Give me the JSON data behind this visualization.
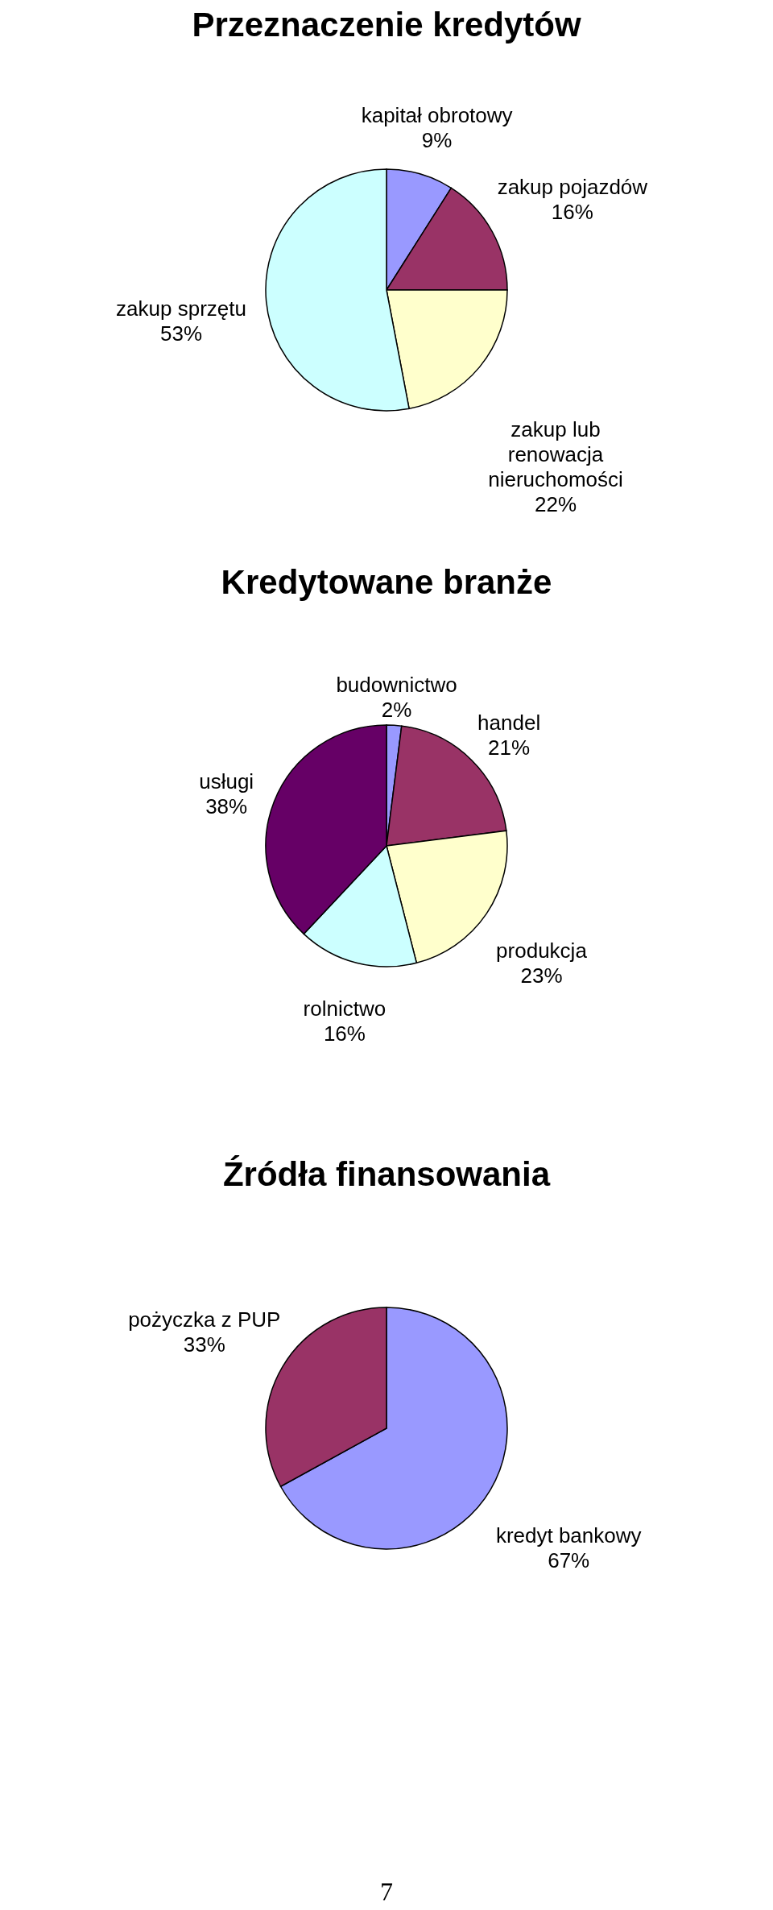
{
  "chart_data": [
    {
      "type": "pie",
      "title": "Przeznaczenie kredytów",
      "categories": [
        "kapitał obrotowy",
        "zakup pojazdów",
        "zakup lub renowacja nieruchomości",
        "zakup sprzętu"
      ],
      "values": [
        9,
        16,
        22,
        53
      ],
      "value_labels": [
        "9%",
        "16%",
        "22%",
        "53%"
      ],
      "colors": [
        "#9999ff",
        "#993366",
        "#ffffcc",
        "#ccffff"
      ]
    },
    {
      "type": "pie",
      "title": "Kredytowane branże",
      "categories": [
        "budownictwo",
        "handel",
        "produkcja",
        "rolnictwo",
        "usługi"
      ],
      "values": [
        2,
        21,
        23,
        16,
        38
      ],
      "value_labels": [
        "2%",
        "21%",
        "23%",
        "16%",
        "38%"
      ],
      "colors": [
        "#9999ff",
        "#993366",
        "#ffffcc",
        "#ccffff",
        "#660066"
      ]
    },
    {
      "type": "pie",
      "title": "Źródła finansowania",
      "categories": [
        "kredyt bankowy",
        "pożyczka z PUP"
      ],
      "values": [
        67,
        33
      ],
      "value_labels": [
        "67%",
        "33%"
      ],
      "colors": [
        "#9999ff",
        "#993366"
      ],
      "annotations": [
        "7"
      ]
    }
  ]
}
